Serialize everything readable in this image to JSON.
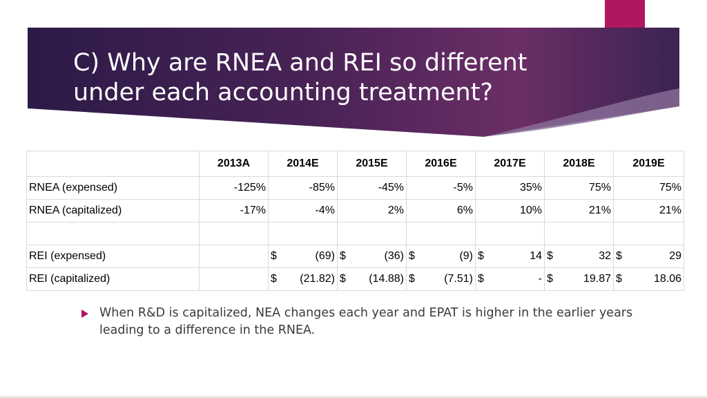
{
  "slide": {
    "title": "C) Why are RNEA and REI so different under each accounting treatment?",
    "accent_color": "#b0175f",
    "banner_color": "#3a2050"
  },
  "table": {
    "headers": [
      "",
      "2013A",
      "2014E",
      "2015E",
      "2016E",
      "2017E",
      "2018E",
      "2019E"
    ],
    "rows": [
      {
        "label": "RNEA (expensed)",
        "cells": [
          "-125%",
          "-85%",
          "-45%",
          "-5%",
          "35%",
          "75%",
          "75%"
        ]
      },
      {
        "label": "RNEA (capitalized)",
        "cells": [
          "-17%",
          "-4%",
          "2%",
          "6%",
          "10%",
          "21%",
          "21%"
        ]
      },
      {
        "label": "",
        "cells": [
          "",
          "",
          "",
          "",
          "",
          "",
          ""
        ]
      },
      {
        "label": "REI (expensed)",
        "currency": "$",
        "cells": [
          "",
          "(69)",
          "(36)",
          "(9)",
          "14",
          "32",
          "29"
        ]
      },
      {
        "label": "REI (capitalized)",
        "currency": "$",
        "cells": [
          "",
          "(21.82)",
          "(14.88)",
          "(7.51)",
          "-",
          "19.87",
          "18.06"
        ]
      }
    ]
  },
  "bullet": {
    "text": "When R&D is capitalized, NEA changes each year and EPAT is higher in the earlier years leading to a difference in the RNEA."
  }
}
